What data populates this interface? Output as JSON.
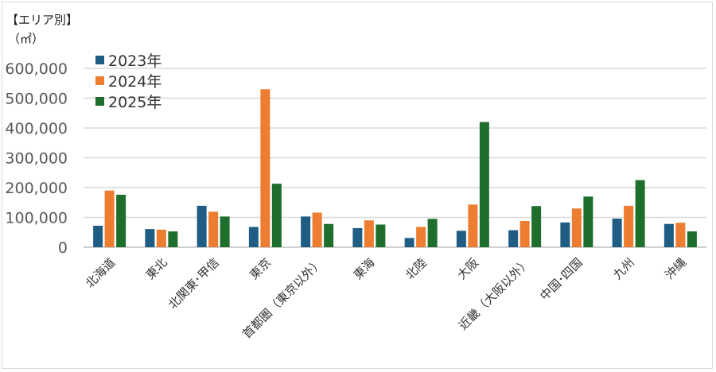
{
  "chart_data": {
    "type": "bar",
    "title": "【エリア別】",
    "unit_label": "（㎡）",
    "categories": [
      "北海道",
      "東北",
      "北関東･甲信",
      "東京",
      "首都圏（東京以外）",
      "東海",
      "北陸",
      "大阪",
      "近畿（大阪以外）",
      "中国･四国",
      "九州",
      "沖縄"
    ],
    "series": [
      {
        "name": "2023年",
        "color": "#1f5d84",
        "values": [
          72000,
          61000,
          139000,
          68000,
          103000,
          64000,
          31000,
          55000,
          57000,
          83000,
          96000,
          78000
        ]
      },
      {
        "name": "2024年",
        "color": "#ed7d31",
        "values": [
          190000,
          59000,
          119000,
          530000,
          116000,
          90000,
          68000,
          143000,
          88000,
          130000,
          139000,
          82000
        ]
      },
      {
        "name": "2025年",
        "color": "#1e6e2c",
        "values": [
          176000,
          53000,
          103000,
          213000,
          78000,
          76000,
          95000,
          420000,
          138000,
          170000,
          225000,
          53000
        ]
      }
    ],
    "ylim": [
      0,
      600000
    ],
    "yticks": [
      "0",
      "100,000",
      "200,000",
      "300,000",
      "400,000",
      "500,000",
      "600,000"
    ],
    "grid": true,
    "legend_position": "top-left"
  }
}
